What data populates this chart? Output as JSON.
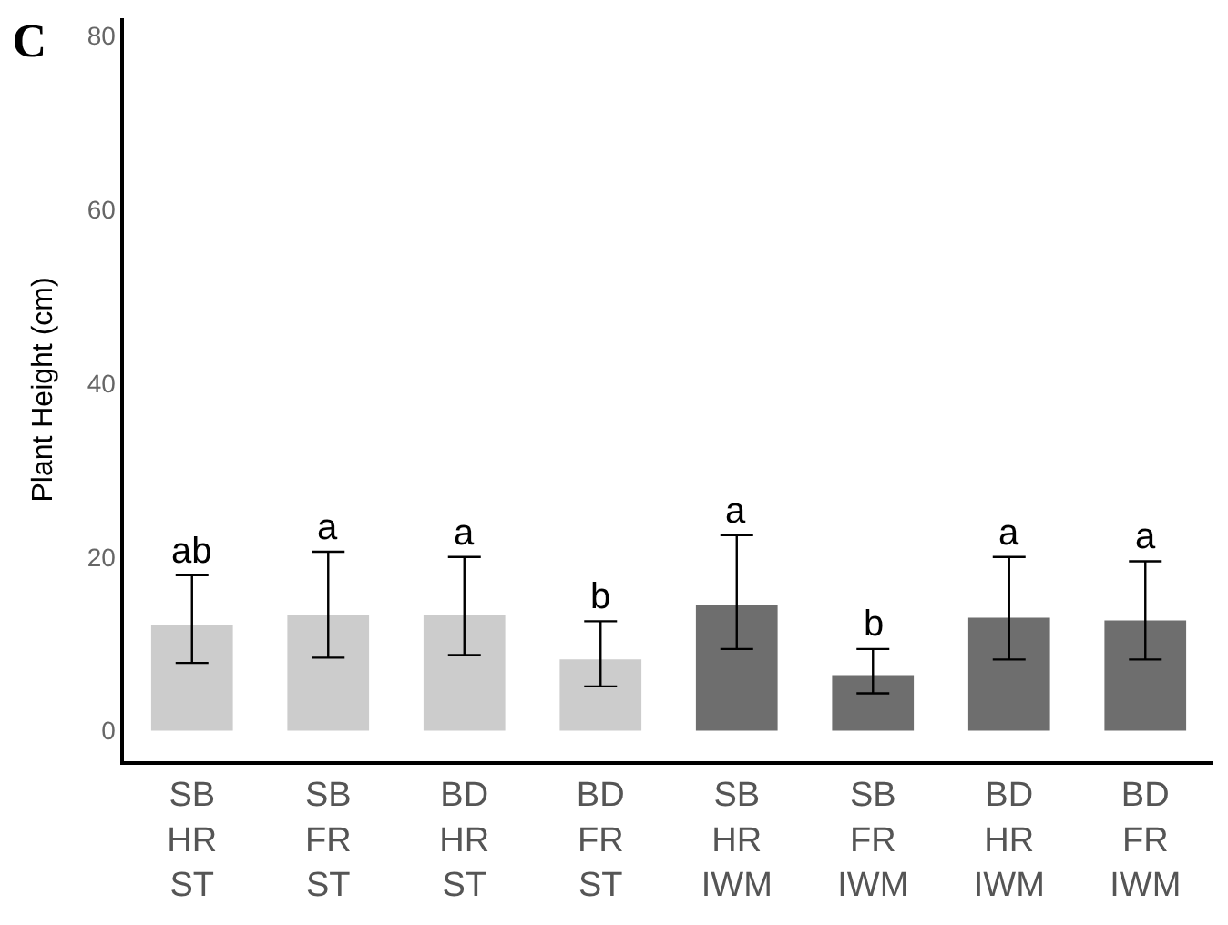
{
  "chart_data": {
    "type": "bar",
    "title": "C",
    "ylabel": "Plant Height (cm)",
    "categories": [
      "SB\nHR\nST",
      "SB\nFR\nST",
      "BD\nHR\nST",
      "BD\nFR\nST",
      "SB\nHR\nIWM",
      "SB\nFR\nIWM",
      "BD\nHR\nIWM",
      "BD\nFR\nIWM"
    ],
    "values": [
      12.1,
      13.3,
      13.3,
      8.2,
      14.5,
      6.4,
      13.0,
      12.7
    ],
    "colors": [
      "#cccccc",
      "#cccccc",
      "#cccccc",
      "#cccccc",
      "#6e6e6e",
      "#6e6e6e",
      "#6e6e6e",
      "#6e6e6e"
    ],
    "errors": [
      [
        7.8,
        17.9
      ],
      [
        8.4,
        20.6
      ],
      [
        8.7,
        20.0
      ],
      [
        5.1,
        12.6
      ],
      [
        9.4,
        22.5
      ],
      [
        4.3,
        9.4
      ],
      [
        8.2,
        20.0
      ],
      [
        8.2,
        19.5
      ]
    ],
    "annotations": [
      {
        "text": "ab",
        "x": "SB\nHR\nST",
        "y": 17.9
      },
      {
        "text": "a",
        "x": "SB\nFR\nST",
        "y": 20.6
      },
      {
        "text": "a",
        "x": "BD\nHR\nST",
        "y": 20.0
      },
      {
        "text": "b",
        "x": "BD\nFR\nST",
        "y": 12.6
      },
      {
        "text": "a",
        "x": "SB\nHR\nIWM",
        "y": 22.5
      },
      {
        "text": "b",
        "x": "SB\nFR\nIWM",
        "y": 9.4
      },
      {
        "text": "a",
        "x": "BD\nHR\nIWM",
        "y": 20.0
      },
      {
        "text": "a",
        "x": "BD\nFR\nIWM",
        "y": 19.5
      }
    ],
    "ylim": [
      -3.5,
      82
    ],
    "yticks": [
      0,
      20,
      40,
      60,
      80
    ],
    "legend": false
  }
}
